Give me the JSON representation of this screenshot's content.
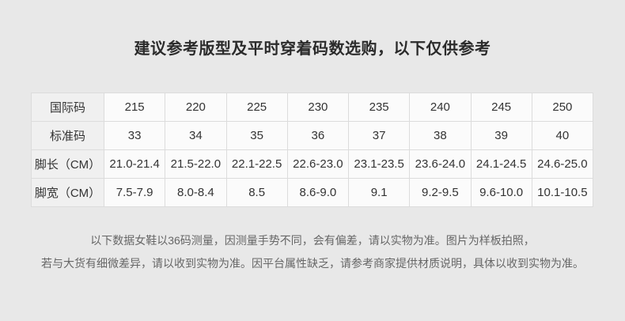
{
  "page": {
    "title": "建议参考版型及平时穿着码数选购，以下仅供参考",
    "notes": [
      "以下数据女鞋以36码测量，因测量手势不同，会有偏差，请以实物为准。图片为样板拍照，",
      "若与大货有细微差异，请以收到实物为准。因平台属性缺乏，请参考商家提供材质说明，具体以收到实物为准。"
    ]
  },
  "size_table": {
    "rows": [
      {
        "label": "国际码",
        "values": [
          "215",
          "220",
          "225",
          "230",
          "235",
          "240",
          "245",
          "250"
        ]
      },
      {
        "label": "标准码",
        "values": [
          "33",
          "34",
          "35",
          "36",
          "37",
          "38",
          "39",
          "40"
        ]
      },
      {
        "label": "脚长（CM）",
        "values": [
          "21.0-21.4",
          "21.5-22.0",
          "22.1-22.5",
          "22.6-23.0",
          "23.1-23.5",
          "23.6-24.0",
          "24.1-24.5",
          "24.6-25.0"
        ]
      },
      {
        "label": "脚宽（CM）",
        "values": [
          "7.5-7.9",
          "8.0-8.4",
          "8.5",
          "8.6-9.0",
          "9.1",
          "9.2-9.5",
          "9.6-10.0",
          "10.1-10.5"
        ]
      }
    ]
  },
  "colors": {
    "page_background": "#e8e8e8",
    "cell_background": "#fbfbfb",
    "label_cell_background": "#f0f0f0",
    "border": "#dcdcdc",
    "title_text": "#2b2b2b",
    "table_text": "#333333",
    "note_text": "#666666"
  }
}
